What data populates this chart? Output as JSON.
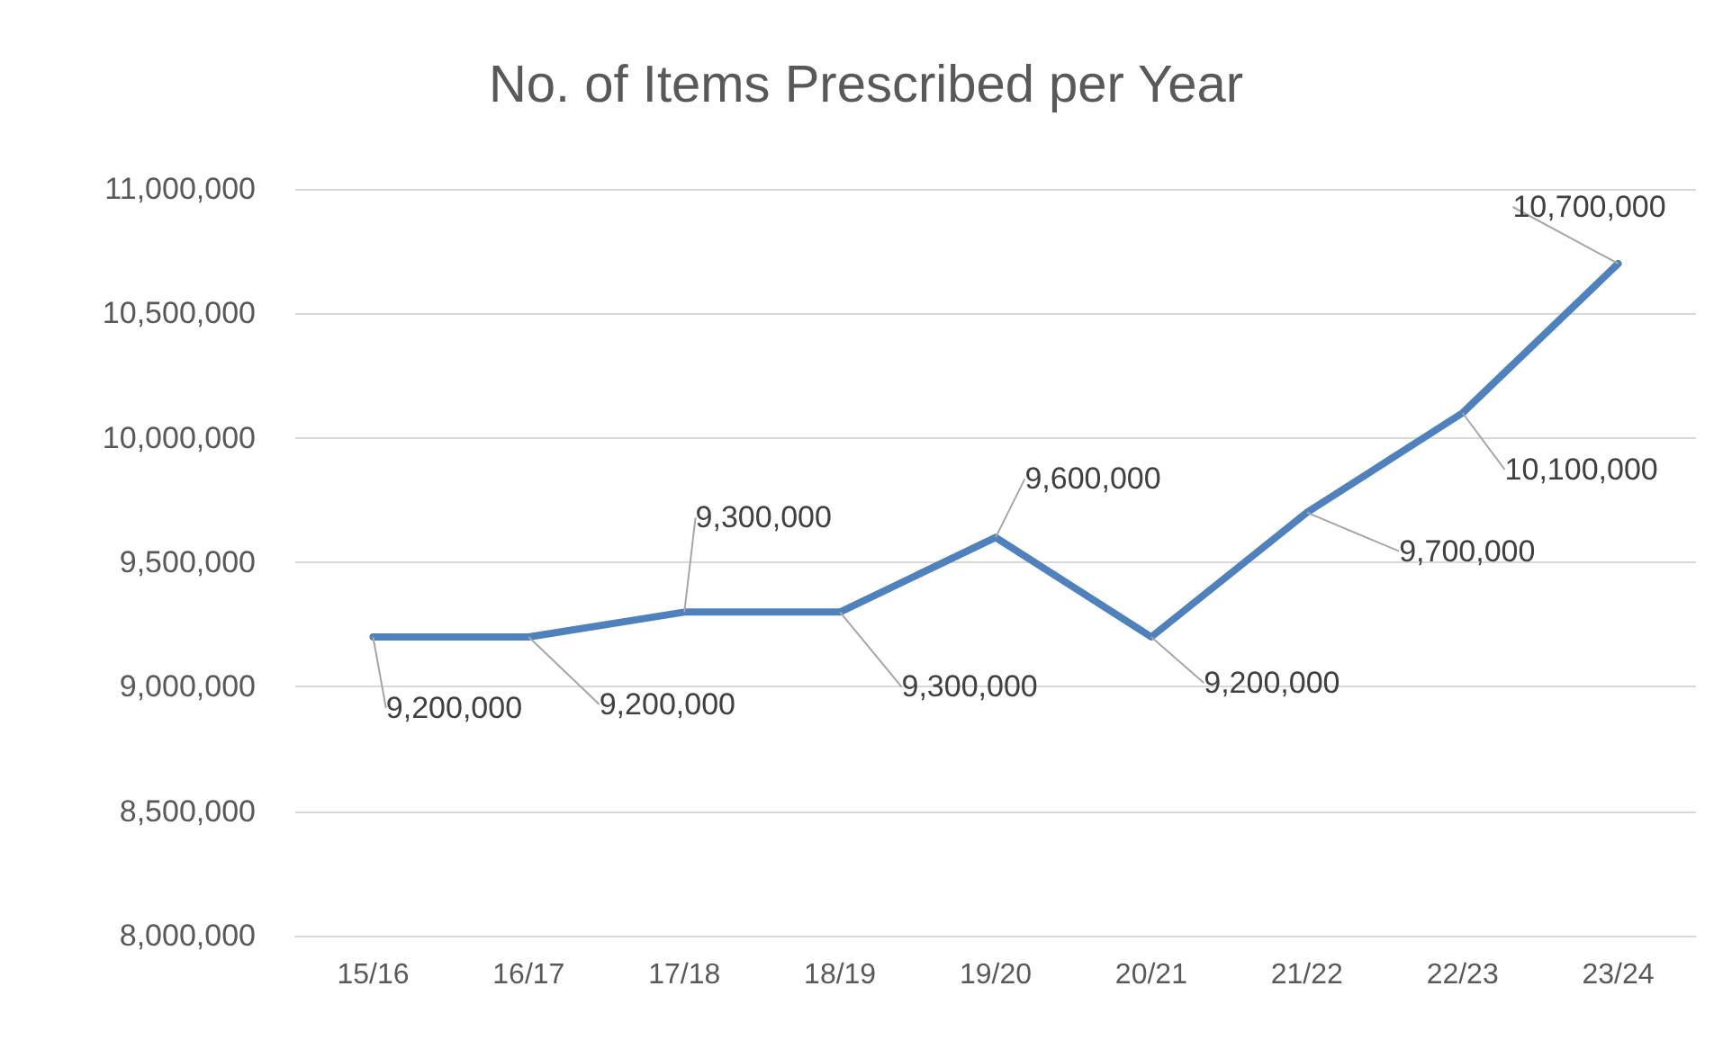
{
  "chart_data": {
    "type": "line",
    "title": "No. of Items Prescribed per Year",
    "categories": [
      "15/16",
      "16/17",
      "17/18",
      "18/19",
      "19/20",
      "20/21",
      "21/22",
      "22/23",
      "23/24"
    ],
    "values": [
      9200000,
      9200000,
      9300000,
      9300000,
      9600000,
      9200000,
      9700000,
      10100000,
      10700000
    ],
    "color": "#4f81bd",
    "ylim": [
      8000000,
      11000000
    ],
    "yticks": [
      {
        "value": 8000000,
        "label": "8,000,000"
      },
      {
        "value": 8500000,
        "label": "8,500,000"
      },
      {
        "value": 9000000,
        "label": "9,000,000"
      },
      {
        "value": 9500000,
        "label": "9,500,000"
      },
      {
        "value": 10000000,
        "label": "10,000,000"
      },
      {
        "value": 10500000,
        "label": "10,500,000"
      },
      {
        "value": 11000000,
        "label": "11,000,000"
      }
    ],
    "value_labels": [
      "9,200,000",
      "9,200,000",
      "9,300,000",
      "9,300,000",
      "9,600,000",
      "9,200,000",
      "9,700,000",
      "10,100,000",
      "10,700,000"
    ],
    "grid": "y",
    "marker": "none",
    "line_style": "solid"
  }
}
